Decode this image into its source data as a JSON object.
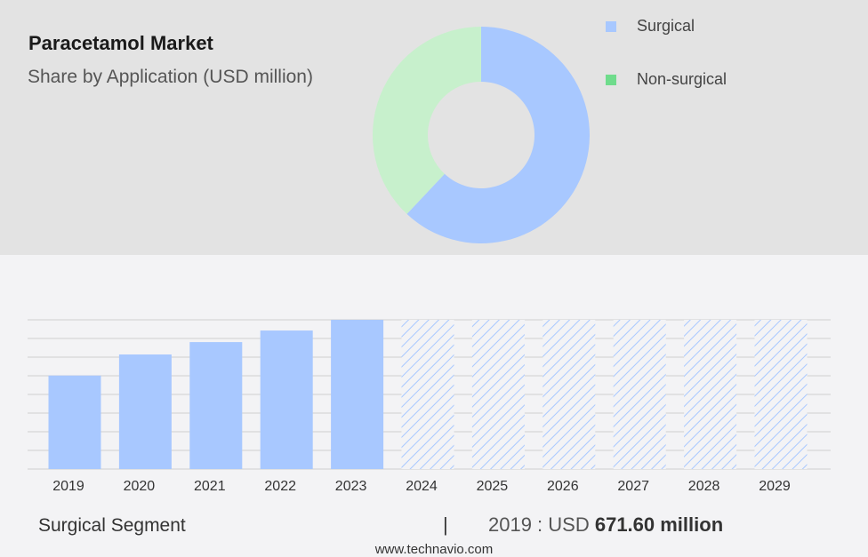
{
  "header": {
    "title": "Paracetamol Market",
    "subtitle": "Share by Application (USD million)"
  },
  "legend": [
    {
      "label": "Surgical",
      "color": "#a8c8ff"
    },
    {
      "label": "Non-surgical",
      "color": "#6fdc8c"
    }
  ],
  "footer": {
    "segment": "Surgical Segment",
    "separator": "|",
    "year_prefix": "2019 : USD ",
    "amount": "671.60 million",
    "website": "www.technavio.com"
  },
  "chart_data": [
    {
      "type": "pie",
      "style": "donut",
      "labels": [
        "Surgical",
        "Non-surgical"
      ],
      "values": [
        62,
        38
      ],
      "colors": [
        "#a8c8ff",
        "#c7f0cc"
      ]
    },
    {
      "type": "bar",
      "categories": [
        "2019",
        "2020",
        "2021",
        "2022",
        "2023",
        "2024",
        "2025",
        "2026",
        "2027",
        "2028",
        "2029"
      ],
      "values": [
        671.6,
        823,
        912,
        995,
        1072,
        1072,
        1072,
        1072,
        1072,
        1072,
        1072
      ],
      "forecast": [
        false,
        false,
        false,
        false,
        false,
        true,
        true,
        true,
        true,
        true,
        true
      ],
      "color": "#a8c8ff",
      "forecast_style": "hatched",
      "grid": true
    }
  ]
}
